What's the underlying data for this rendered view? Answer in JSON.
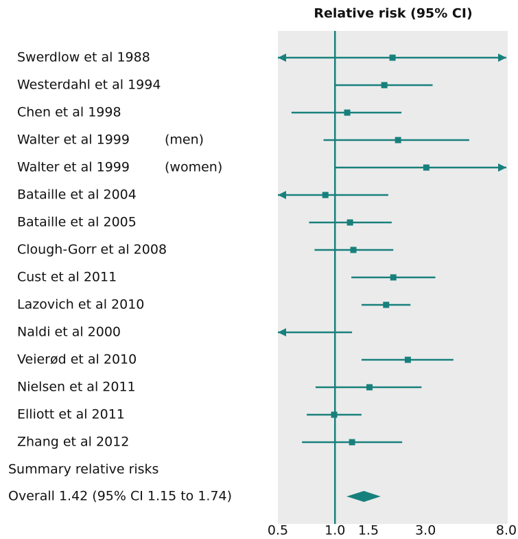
{
  "chart_data": {
    "type": "forest",
    "title": "Relative risk (95% CI)",
    "xlog": true,
    "xlim": [
      0.5,
      8
    ],
    "xticks": [
      0.5,
      {
        "value": 1,
        "label": "1.0"
      },
      1.5,
      {
        "value": 3,
        "label": "3.0"
      },
      {
        "value": 8,
        "label": "8.0"
      }
    ],
    "reference_line": 1,
    "color": "#18807c",
    "background": "#ebebeb",
    "studies": [
      {
        "name": "Swerdlow et al 1988",
        "value": 2.01,
        "lower": 0.4,
        "upper": 10
      },
      {
        "name": "Westerdahl et al 1994",
        "value": 1.82,
        "lower": 1.0,
        "upper": 3.27
      },
      {
        "name": "Chen et al 1998",
        "value": 1.16,
        "lower": 0.59,
        "upper": 2.24
      },
      {
        "name": "Walter et al 1999",
        "group": "(men)",
        "value": 2.15,
        "lower": 0.87,
        "upper": 5.1
      },
      {
        "name": "Walter et al 1999",
        "group": "(women)",
        "value": 3.03,
        "lower": 1.0,
        "upper": 10
      },
      {
        "name": "Bataille et al 2004",
        "value": 0.89,
        "lower": 0.4,
        "upper": 1.91
      },
      {
        "name": "Bataille et al 2005",
        "value": 1.2,
        "lower": 0.73,
        "upper": 1.99
      },
      {
        "name": "Clough-Gorr et al 2008",
        "value": 1.25,
        "lower": 0.78,
        "upper": 2.03
      },
      {
        "name": "Cust et al 2011",
        "value": 2.03,
        "lower": 1.22,
        "upper": 3.38
      },
      {
        "name": "Lazovich et al 2010",
        "value": 1.86,
        "lower": 1.38,
        "upper": 2.5
      },
      {
        "name": "Naldi et al 2000",
        "value": 0.4,
        "lower": 0.3,
        "upper": 1.23
      },
      {
        "name": "Veierød et al 2010",
        "value": 2.42,
        "lower": 1.38,
        "upper": 4.21
      },
      {
        "name": "Nielsen et al 2011",
        "value": 1.52,
        "lower": 0.79,
        "upper": 2.86
      },
      {
        "name": "Elliott et al 2011",
        "value": 0.99,
        "lower": 0.71,
        "upper": 1.38
      },
      {
        "name": "Zhang et al 2012",
        "value": 1.23,
        "lower": 0.67,
        "upper": 2.26
      }
    ],
    "summary_heading": "Summary relative risks",
    "overall": {
      "label": "Overall 1.42 (95% CI 1.15 to 1.74)",
      "value": 1.42,
      "lower": 1.15,
      "upper": 1.74
    }
  }
}
